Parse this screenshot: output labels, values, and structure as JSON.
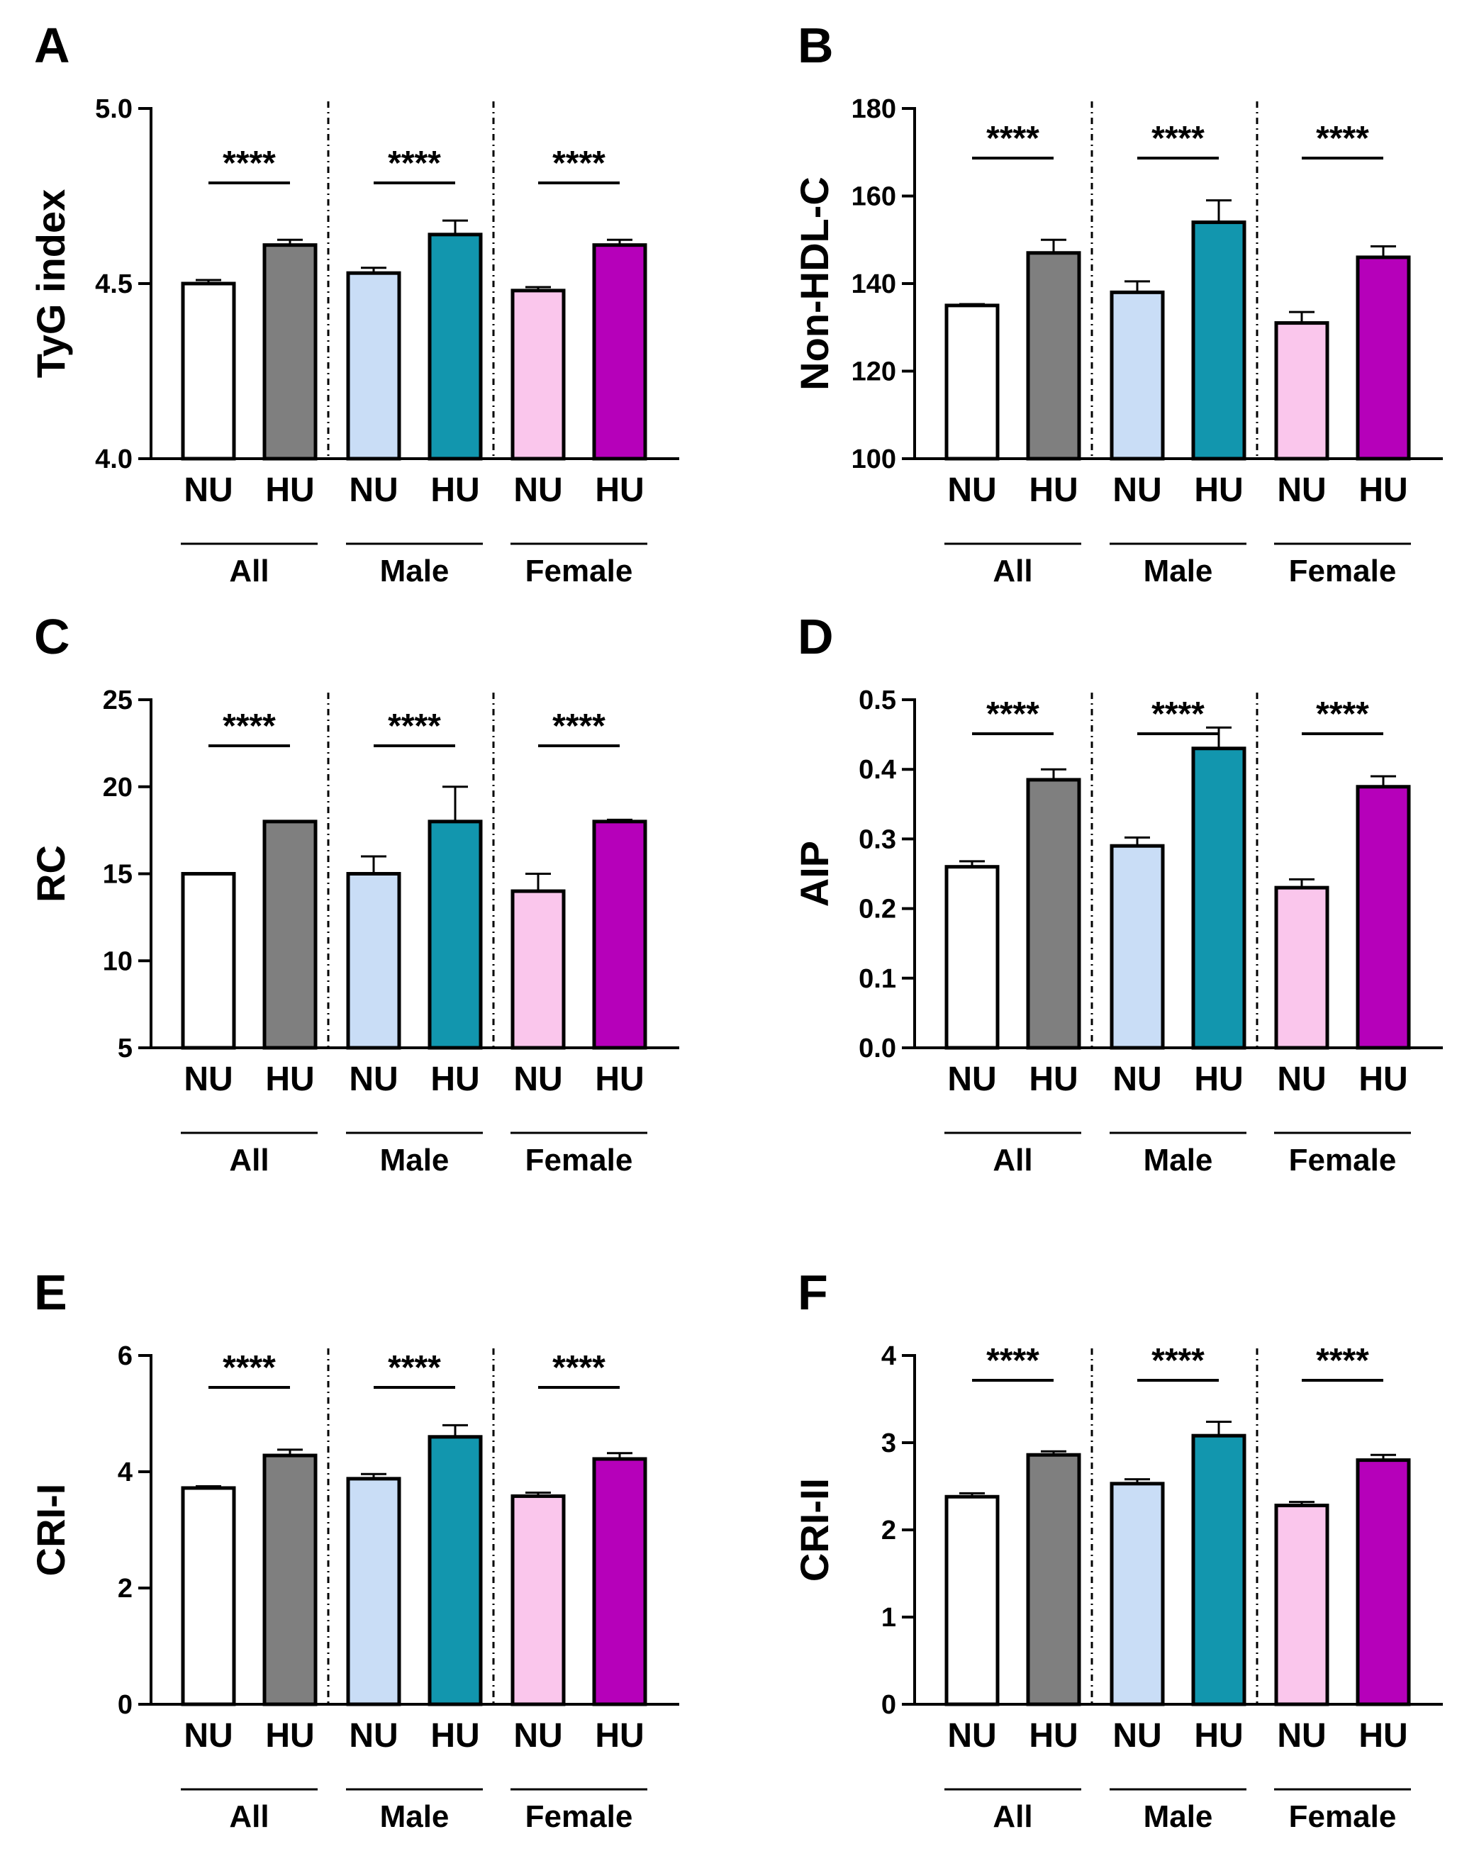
{
  "figure": {
    "group_labels": [
      "All",
      "Male",
      "Female"
    ],
    "bar_labels": [
      "NU",
      "HU",
      "NU",
      "HU",
      "NU",
      "HU"
    ],
    "colors": [
      "#ffffff",
      "#7f7f7f",
      "#c9ddf6",
      "#1296ae",
      "#fac6ec",
      "#b600ba"
    ]
  },
  "chart_data": [
    {
      "panel": "A",
      "type": "bar",
      "ylabel": "TyG index",
      "ylim": [
        4.0,
        5.0
      ],
      "yticks": [
        "4.0",
        "4.5",
        "5.0"
      ],
      "categories": [
        "NU",
        "HU",
        "NU",
        "HU",
        "NU",
        "HU"
      ],
      "groups": [
        "All",
        "Male",
        "Female"
      ],
      "values": [
        4.5,
        4.61,
        4.53,
        4.64,
        4.48,
        4.61
      ],
      "errors": [
        0.01,
        0.015,
        0.015,
        0.04,
        0.01,
        0.015
      ],
      "significance": [
        "****",
        "****",
        "****"
      ]
    },
    {
      "panel": "B",
      "type": "bar",
      "ylabel": "Non-HDL-C",
      "ylim": [
        100,
        180
      ],
      "yticks": [
        "100",
        "120",
        "140",
        "160",
        "180"
      ],
      "categories": [
        "NU",
        "HU",
        "NU",
        "HU",
        "NU",
        "HU"
      ],
      "groups": [
        "All",
        "Male",
        "Female"
      ],
      "values": [
        135,
        147,
        138,
        154,
        131,
        146
      ],
      "errors": [
        0.3,
        3,
        2.5,
        5,
        2.5,
        2.5
      ],
      "significance": [
        "****",
        "****",
        "****"
      ]
    },
    {
      "panel": "C",
      "type": "bar",
      "ylabel": "RC",
      "ylim": [
        5,
        25
      ],
      "yticks": [
        "5",
        "10",
        "15",
        "20",
        "25"
      ],
      "categories": [
        "NU",
        "HU",
        "NU",
        "HU",
        "NU",
        "HU"
      ],
      "groups": [
        "All",
        "Male",
        "Female"
      ],
      "values": [
        15,
        18,
        15,
        18,
        14,
        18
      ],
      "errors": [
        0,
        0,
        1,
        2,
        1,
        0.1
      ],
      "significance": [
        "****",
        "****",
        "****"
      ]
    },
    {
      "panel": "D",
      "type": "bar",
      "ylabel": "AIP",
      "ylim": [
        0.0,
        0.5
      ],
      "yticks": [
        "0.0",
        "0.1",
        "0.2",
        "0.3",
        "0.4",
        "0.5"
      ],
      "categories": [
        "NU",
        "HU",
        "NU",
        "HU",
        "NU",
        "HU"
      ],
      "groups": [
        "All",
        "Male",
        "Female"
      ],
      "values": [
        0.26,
        0.385,
        0.29,
        0.43,
        0.23,
        0.375
      ],
      "errors": [
        0.008,
        0.015,
        0.012,
        0.03,
        0.012,
        0.015
      ],
      "significance": [
        "****",
        "****",
        "****"
      ]
    },
    {
      "panel": "E",
      "type": "bar",
      "ylabel": "CRI-I",
      "ylim": [
        0,
        6
      ],
      "yticks": [
        "0",
        "2",
        "4",
        "6"
      ],
      "categories": [
        "NU",
        "HU",
        "NU",
        "HU",
        "NU",
        "HU"
      ],
      "groups": [
        "All",
        "Male",
        "Female"
      ],
      "values": [
        3.72,
        4.28,
        3.88,
        4.6,
        3.58,
        4.22
      ],
      "errors": [
        0.03,
        0.1,
        0.08,
        0.2,
        0.06,
        0.1
      ],
      "significance": [
        "****",
        "****",
        "****"
      ]
    },
    {
      "panel": "F",
      "type": "bar",
      "ylabel": "CRI-II",
      "ylim": [
        0,
        4
      ],
      "yticks": [
        "0",
        "1",
        "2",
        "3",
        "4"
      ],
      "categories": [
        "NU",
        "HU",
        "NU",
        "HU",
        "NU",
        "HU"
      ],
      "groups": [
        "All",
        "Male",
        "Female"
      ],
      "values": [
        2.38,
        2.86,
        2.53,
        3.08,
        2.28,
        2.8
      ],
      "errors": [
        0.04,
        0.04,
        0.05,
        0.16,
        0.04,
        0.06
      ],
      "significance": [
        "****",
        "****",
        "****"
      ]
    }
  ]
}
